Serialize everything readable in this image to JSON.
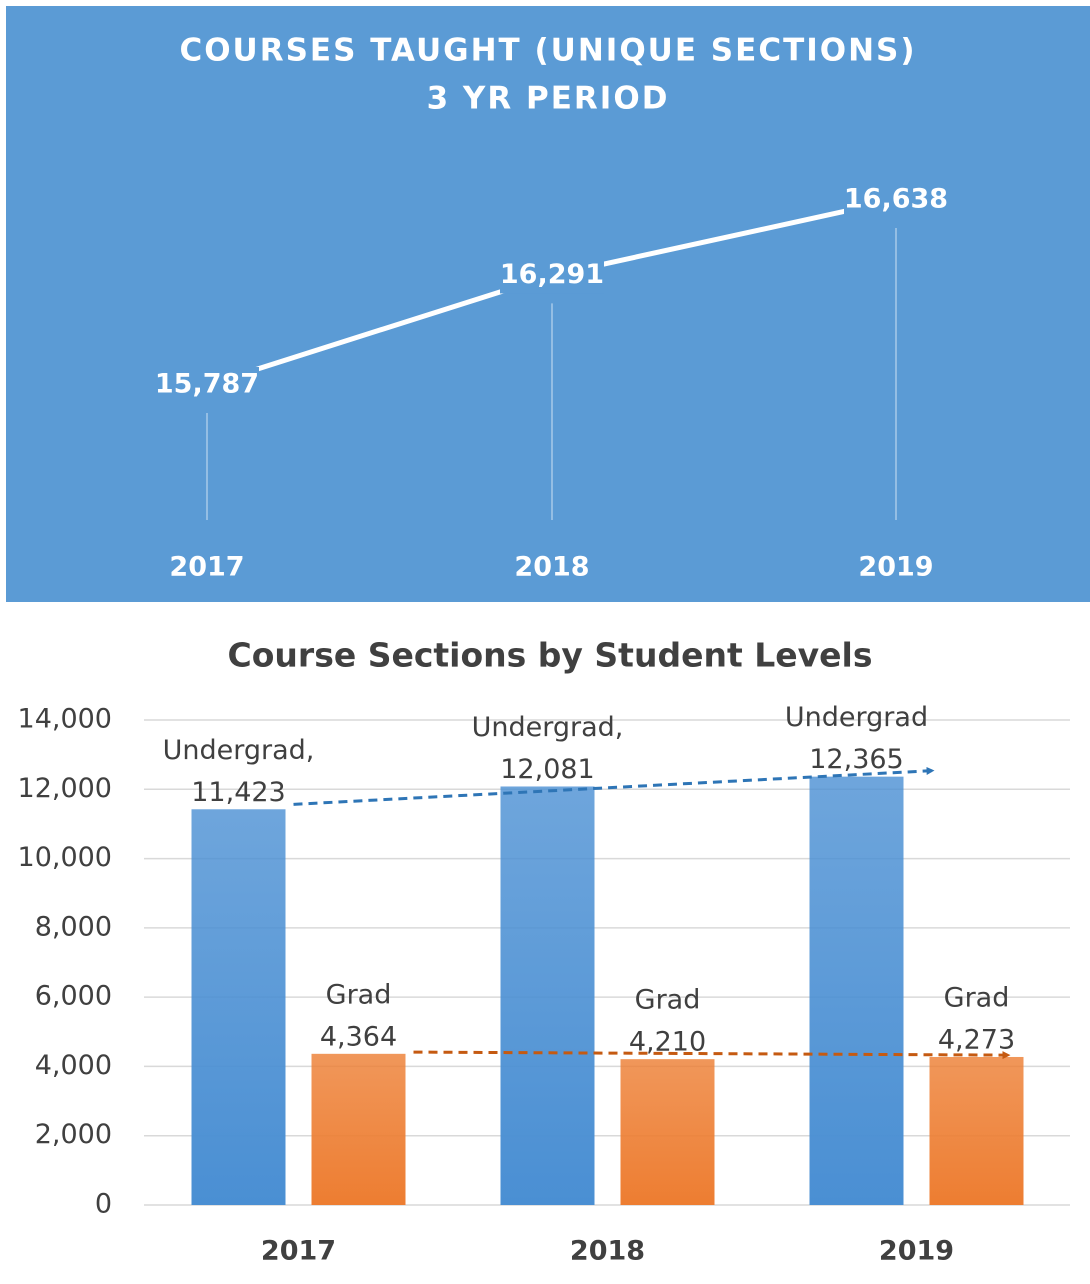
{
  "chart_data": [
    {
      "type": "line",
      "title": "COURSES TAUGHT (UNIQUE SECTIONS)",
      "subtitle": "3 YR PERIOD",
      "categories": [
        "2017",
        "2018",
        "2019"
      ],
      "values": [
        15787,
        16291,
        16638
      ],
      "value_labels": [
        "15,787",
        "16,291",
        "16,638"
      ],
      "color": "#ffffff",
      "background": "#5b9bd5"
    },
    {
      "type": "bar",
      "title": "Course Sections by Student Levels",
      "categories": [
        "2017",
        "2018",
        "2019"
      ],
      "series": [
        {
          "name": "Undergrad",
          "color": "#4a8fd3",
          "values": [
            11423,
            12081,
            12365
          ],
          "point_labels": [
            "Undergrad,",
            "Undergrad,",
            "Undergrad"
          ],
          "value_labels": [
            "11,423",
            "12,081",
            "12,365"
          ],
          "trend_color": "#2e75b6"
        },
        {
          "name": "Grad",
          "color": "#ed7d31",
          "values": [
            4364,
            4210,
            4273
          ],
          "point_labels": [
            "Grad",
            "Grad",
            "Grad"
          ],
          "value_labels": [
            "4,364",
            "4,210",
            "4,273"
          ],
          "trend_color": "#c55a11"
        }
      ],
      "ylim": [
        0,
        14000
      ],
      "yticks": [
        0,
        {
          "value": 2000,
          "label": "2,000"
        },
        {
          "value": 4000,
          "label": "4,000"
        },
        {
          "value": 6000,
          "label": "6,000"
        },
        {
          "value": 8000,
          "label": "8,000"
        },
        {
          "value": 10000,
          "label": "10,000"
        },
        {
          "value": 12000,
          "label": "12,000"
        },
        {
          "value": 14000,
          "label": "14,000"
        }
      ],
      "grid": true
    }
  ]
}
